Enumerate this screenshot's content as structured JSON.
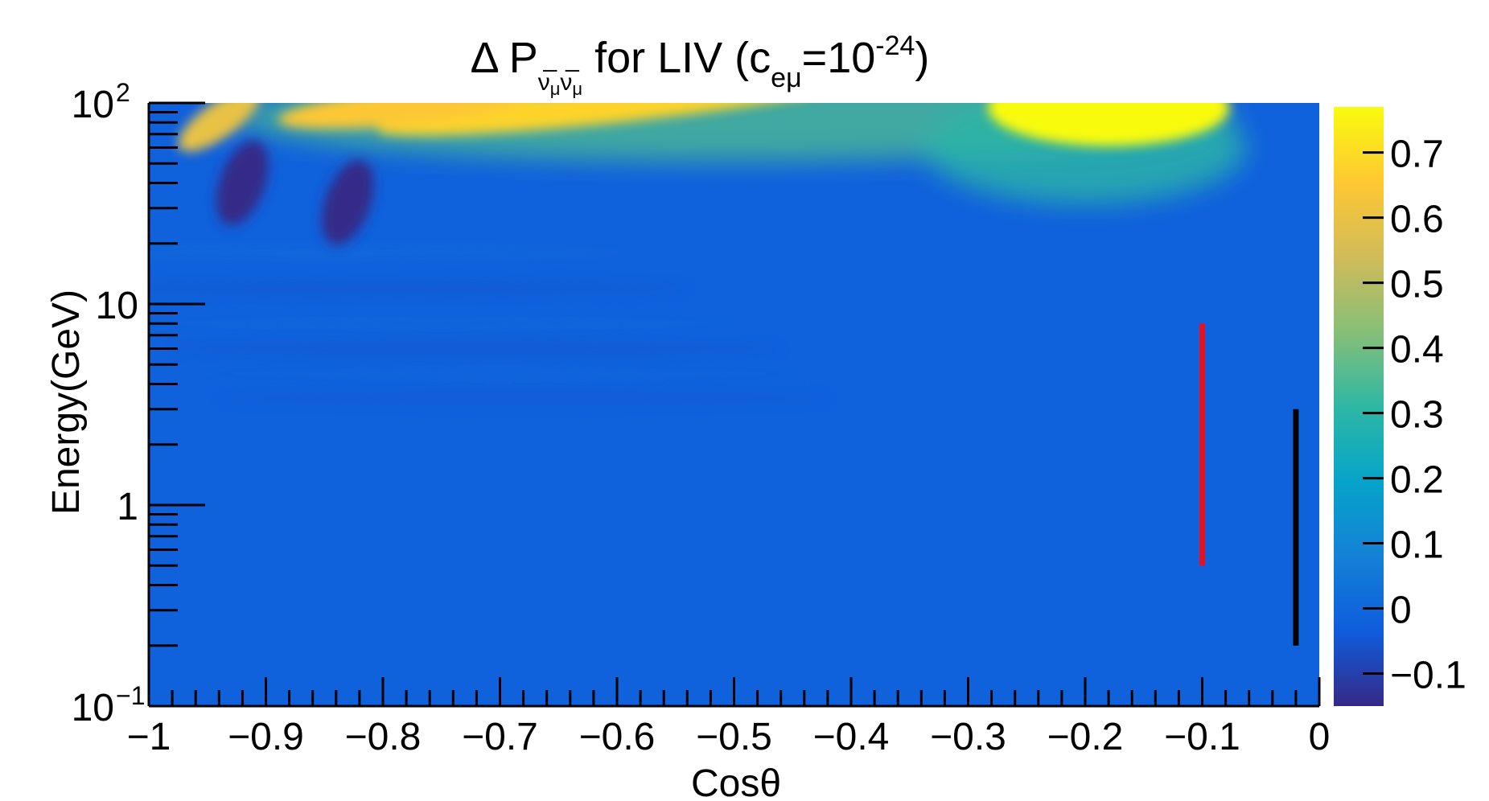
{
  "chart_data": {
    "type": "heatmap",
    "title": {
      "prefix": "Δ P",
      "sub1": "ν̅",
      "sub1b": "μ",
      "sub2": "ν̅",
      "sub2b": "μ",
      "middle": " for LIV (c",
      "sub3": "eμ",
      "eq": "=10",
      "sup": "-24",
      "suffix": ")"
    },
    "xlabel": "Cosθ",
    "ylabel": "Energy(GeV)",
    "xlim": [
      -1,
      0
    ],
    "ylim": [
      0.1,
      100
    ],
    "y_scale": "log",
    "x_ticks": [
      {
        "v": -1,
        "label": "−1"
      },
      {
        "v": -0.9,
        "label": "−0.9"
      },
      {
        "v": -0.8,
        "label": "−0.8"
      },
      {
        "v": -0.7,
        "label": "−0.7"
      },
      {
        "v": -0.6,
        "label": "−0.6"
      },
      {
        "v": -0.5,
        "label": "−0.5"
      },
      {
        "v": -0.4,
        "label": "−0.4"
      },
      {
        "v": -0.3,
        "label": "−0.3"
      },
      {
        "v": -0.2,
        "label": "−0.2"
      },
      {
        "v": -0.1,
        "label": "−0.1"
      },
      {
        "v": 0,
        "label": "0"
      }
    ],
    "y_ticks": [
      {
        "v": 0.1,
        "base": "10",
        "exp": "−1"
      },
      {
        "v": 1,
        "base": "1",
        "exp": ""
      },
      {
        "v": 10,
        "base": "10",
        "exp": ""
      },
      {
        "v": 100,
        "base": "10",
        "exp": "2"
      }
    ],
    "colorbar": {
      "range": [
        -0.15,
        0.77
      ],
      "ticks": [
        {
          "v": -0.1,
          "label": "−0.1"
        },
        {
          "v": 0,
          "label": "0"
        },
        {
          "v": 0.1,
          "label": "0.1"
        },
        {
          "v": 0.2,
          "label": "0.2"
        },
        {
          "v": 0.3,
          "label": "0.3"
        },
        {
          "v": 0.4,
          "label": "0.4"
        },
        {
          "v": 0.5,
          "label": "0.5"
        },
        {
          "v": 0.6,
          "label": "0.6"
        },
        {
          "v": 0.7,
          "label": "0.7"
        }
      ],
      "colors": [
        "#352a87",
        "#0f5cdd",
        "#1481d6",
        "#06a4ca",
        "#2eb7a4",
        "#87bf77",
        "#d1bb59",
        "#fec832",
        "#f9fb0e"
      ]
    },
    "background_value": -0.02,
    "features": [
      {
        "name": "peak",
        "x": -0.18,
        "E": 95,
        "value": 0.77
      },
      {
        "name": "band",
        "x": -0.6,
        "E": 98,
        "value": 0.68
      },
      {
        "name": "band",
        "x": -0.78,
        "E": 96,
        "value": 0.65
      },
      {
        "name": "peak",
        "x": -0.94,
        "E": 82,
        "value": 0.6
      },
      {
        "name": "dip",
        "x": -0.92,
        "E": 40,
        "value": -0.15
      },
      {
        "name": "dip",
        "x": -0.83,
        "E": 32,
        "value": -0.15
      }
    ],
    "markers": [
      {
        "x": -0.1,
        "E_min": 0.5,
        "E_max": 8,
        "color": "#e8101f"
      },
      {
        "x": -0.02,
        "E_min": 0.2,
        "E_max": 3,
        "color": "#000000"
      }
    ]
  }
}
